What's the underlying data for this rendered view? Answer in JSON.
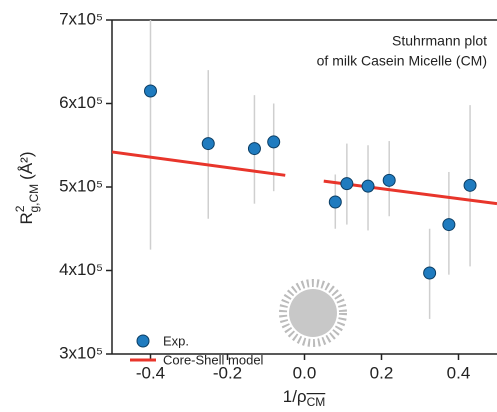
{
  "chart_data": {
    "type": "scatter",
    "annotation": [
      "Stuhrmann plot",
      "of milk Casein Micelle (CM)"
    ],
    "y_label": {
      "main": "R",
      "sup": "2",
      "sub": "g,CM",
      "unit": "(Å²)"
    },
    "x_label": {
      "main": "1/ρ",
      "sub": "CM"
    },
    "xlim": [
      -0.5,
      0.5
    ],
    "xticks": [
      -0.4,
      -0.2,
      {
        "value": 0,
        "label": "0.0"
      },
      0.2,
      0.4
    ],
    "ylim": [
      300000,
      700000
    ],
    "yticks": [
      {
        "value": 300000,
        "label": "3x10⁵"
      },
      {
        "value": 400000,
        "label": "4x10⁵"
      },
      {
        "value": 500000,
        "label": "5x10⁵"
      },
      {
        "value": 600000,
        "label": "6x10⁵"
      },
      {
        "value": 700000,
        "label": "7x10⁵"
      }
    ],
    "series": [
      {
        "name": "Exp.",
        "color": "#1f7bbf",
        "x": [
          -0.4,
          -0.25,
          -0.13,
          -0.08,
          0.08,
          0.11,
          0.165,
          0.22,
          0.325,
          0.375,
          0.43
        ],
        "values": [
          615000,
          552000,
          546000,
          554000,
          482000,
          504000,
          501000,
          508000,
          397000,
          455000,
          502000
        ],
        "err_low": [
          425000,
          462000,
          480000,
          495000,
          450000,
          455000,
          448000,
          465000,
          342000,
          395000,
          405000
        ],
        "err_high": [
          700000,
          640000,
          610000,
          600000,
          515000,
          552000,
          550000,
          555000,
          450000,
          518000,
          598000
        ]
      },
      {
        "name": "Core-Shell model",
        "color": "#e8352b",
        "x": [
          -0.5,
          -0.05,
          null,
          0.05,
          0.5
        ],
        "values": [
          542000,
          514000,
          null,
          507000,
          480000
        ]
      }
    ]
  }
}
